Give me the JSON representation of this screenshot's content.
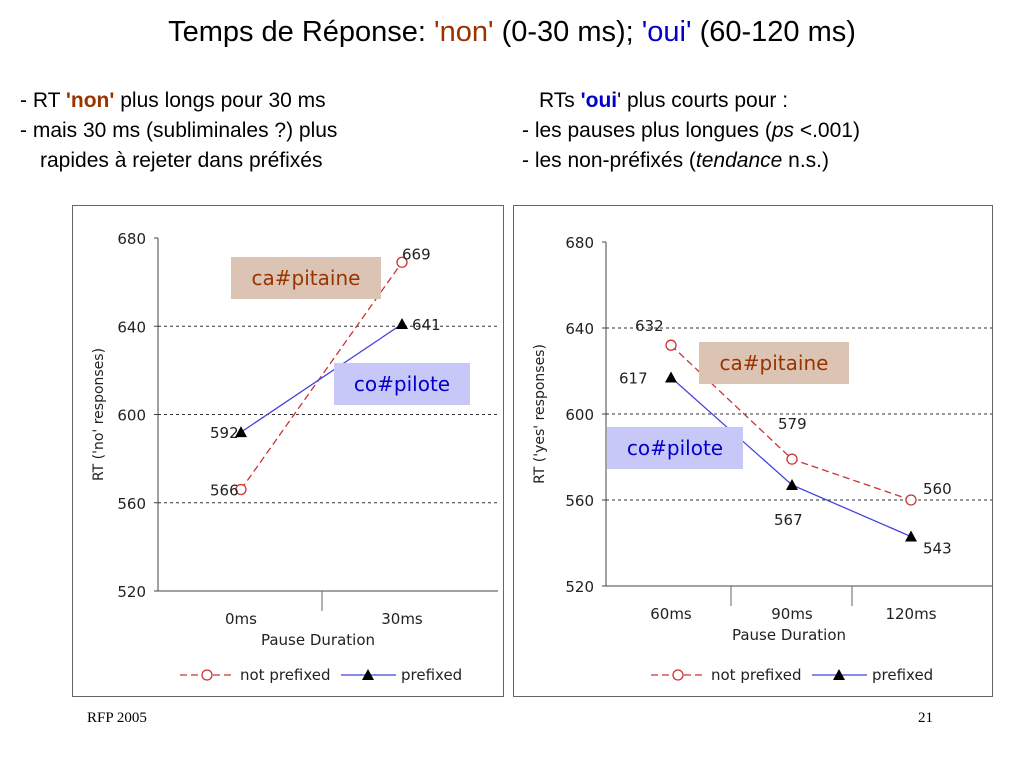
{
  "slide": {
    "title": {
      "prefix": "Temps de Réponse: ",
      "non": "'non'",
      "non_range": " (0-30 ms); ",
      "oui": "'oui'",
      "oui_range": " (60-120 ms)"
    },
    "left_bullets": {
      "l1_a": "- RT ",
      "l1_b": "'non'",
      "l1_c": " plus longs pour 30 ms",
      "l2": "- mais 30 ms (subliminales ?) plus",
      "l3": "rapides à rejeter dans préfixés"
    },
    "right_bullets": {
      "l1_a": "RTs ",
      "l1_b": "'oui",
      "l1_c": "' plus courts pour :",
      "l2_a": "- les pauses plus longues (",
      "l2_b": "ps",
      "l2_c": " <.001)",
      "l3_a": "- les non-préfixés (",
      "l3_b": "tendance",
      "l3_c": " n.s.)"
    },
    "footer": {
      "left": "RFP 2005",
      "right": "21"
    }
  },
  "chart_data": [
    {
      "type": "line",
      "categories": [
        "0ms",
        "30ms"
      ],
      "xlabel": "Pause Duration",
      "ylabel": "RT ('no' responses)",
      "ylim": [
        520,
        680
      ],
      "yticks": [
        520,
        560,
        600,
        640,
        680
      ],
      "gridlines": [
        560,
        600,
        640
      ],
      "series": [
        {
          "name": "not prefixed",
          "values": [
            566,
            669
          ],
          "labels": [
            "566",
            "669"
          ],
          "color": "#cc3333",
          "dash": true,
          "marker": "circle"
        },
        {
          "name": "prefixed",
          "values": [
            592,
            641
          ],
          "labels": [
            "592",
            "641"
          ],
          "color": "#4444dd",
          "dash": false,
          "marker": "triangle"
        }
      ],
      "annotations": [
        {
          "text": "ca#pitaine",
          "background": "#dcc4b4",
          "color": "#993300"
        },
        {
          "text": "co#pilote",
          "background": "#c8c8f8",
          "color": "#0000cc"
        }
      ]
    },
    {
      "type": "line",
      "categories": [
        "60ms",
        "90ms",
        "120ms"
      ],
      "xlabel": "Pause Duration",
      "ylabel": "RT ('yes' responses)",
      "ylim": [
        520,
        680
      ],
      "yticks": [
        520,
        560,
        600,
        640,
        680
      ],
      "gridlines": [
        560,
        600,
        640
      ],
      "series": [
        {
          "name": "not prefixed",
          "values": [
            632,
            579,
            560
          ],
          "labels": [
            "632",
            "579",
            "560"
          ],
          "color": "#cc3333",
          "dash": true,
          "marker": "circle"
        },
        {
          "name": "prefixed",
          "values": [
            617,
            567,
            543
          ],
          "labels": [
            "617",
            "567",
            "543"
          ],
          "color": "#4444dd",
          "dash": false,
          "marker": "triangle"
        }
      ],
      "annotations": [
        {
          "text": "ca#pitaine",
          "background": "#dcc4b4",
          "color": "#993300"
        },
        {
          "text": "co#pilote",
          "background": "#c8c8f8",
          "color": "#0000cc"
        }
      ]
    }
  ]
}
